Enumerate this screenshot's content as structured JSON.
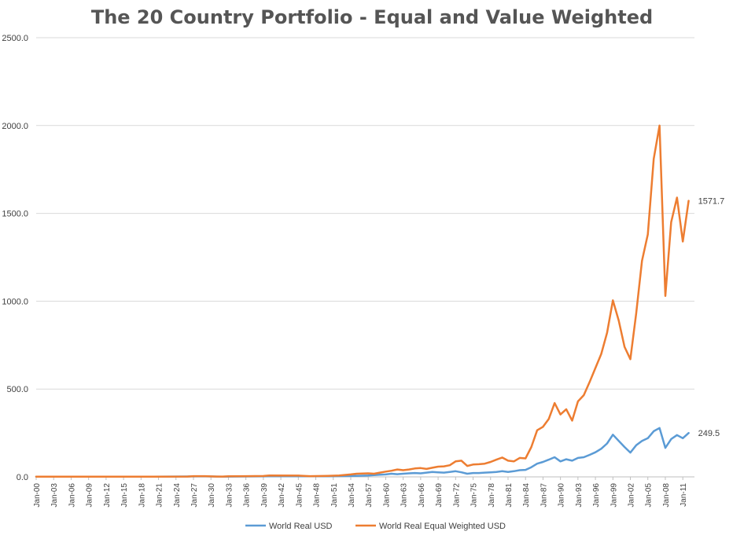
{
  "title": "The 20 Country Portfolio - Equal and Value Weighted",
  "chart_data": {
    "type": "line",
    "title": "The 20 Country Portfolio - Equal and Value Weighted",
    "xlabel": "",
    "ylabel": "",
    "ylim": [
      0,
      2500
    ],
    "y_ticks": [
      "0.0",
      "500.0",
      "1000.0",
      "1500.0",
      "2000.0",
      "2500.0"
    ],
    "x_start_year": 1900,
    "x_end_year": 2013,
    "x_ticks": [
      "Jan-00",
      "Jan-03",
      "Jan-06",
      "Jan-09",
      "Jan-12",
      "Jan-15",
      "Jan-18",
      "Jan-21",
      "Jan-24",
      "Jan-27",
      "Jan-30",
      "Jan-33",
      "Jan-36",
      "Jan-39",
      "Jan-42",
      "Jan-45",
      "Jan-48",
      "Jan-51",
      "Jan-54",
      "Jan-57",
      "Jan-60",
      "Jan-63",
      "Jan-66",
      "Jan-69",
      "Jan-72",
      "Jan-75",
      "Jan-78",
      "Jan-81",
      "Jan-84",
      "Jan-87",
      "Jan-90",
      "Jan-93",
      "Jan-96",
      "Jan-99",
      "Jan-02",
      "Jan-05",
      "Jan-08",
      "Jan-11"
    ],
    "grid": "horizontal",
    "legend_position": "bottom",
    "series": [
      {
        "name": "World Real USD",
        "color": "#5b9bd5",
        "end_label": "249.5",
        "points": [
          [
            1900,
            1
          ],
          [
            1910,
            1.5
          ],
          [
            1920,
            1.2
          ],
          [
            1929,
            2.5
          ],
          [
            1932,
            1.5
          ],
          [
            1940,
            3
          ],
          [
            1945,
            3.5
          ],
          [
            1949,
            3
          ],
          [
            1950,
            3
          ],
          [
            1955,
            6
          ],
          [
            1957,
            8
          ],
          [
            1959,
            12
          ],
          [
            1960,
            14
          ],
          [
            1961,
            18
          ],
          [
            1962,
            15
          ],
          [
            1963,
            18
          ],
          [
            1964,
            20
          ],
          [
            1965,
            22
          ],
          [
            1966,
            20
          ],
          [
            1967,
            24
          ],
          [
            1968,
            28
          ],
          [
            1969,
            26
          ],
          [
            1970,
            24
          ],
          [
            1971,
            28
          ],
          [
            1972,
            32
          ],
          [
            1973,
            26
          ],
          [
            1974,
            18
          ],
          [
            1975,
            22
          ],
          [
            1976,
            22
          ],
          [
            1977,
            24
          ],
          [
            1978,
            26
          ],
          [
            1979,
            28
          ],
          [
            1980,
            32
          ],
          [
            1981,
            28
          ],
          [
            1982,
            32
          ],
          [
            1983,
            38
          ],
          [
            1984,
            40
          ],
          [
            1985,
            55
          ],
          [
            1986,
            75
          ],
          [
            1987,
            85
          ],
          [
            1988,
            98
          ],
          [
            1989,
            112
          ],
          [
            1990,
            88
          ],
          [
            1991,
            100
          ],
          [
            1992,
            92
          ],
          [
            1993,
            108
          ],
          [
            1994,
            112
          ],
          [
            1995,
            125
          ],
          [
            1996,
            140
          ],
          [
            1997,
            160
          ],
          [
            1998,
            190
          ],
          [
            1999,
            240
          ],
          [
            2000,
            205
          ],
          [
            2001,
            170
          ],
          [
            2002,
            138
          ],
          [
            2003,
            180
          ],
          [
            2004,
            205
          ],
          [
            2005,
            220
          ],
          [
            2006,
            260
          ],
          [
            2007,
            278
          ],
          [
            2008,
            165
          ],
          [
            2009,
            215
          ],
          [
            2010,
            238
          ],
          [
            2011,
            220
          ],
          [
            2012,
            249.5
          ]
        ]
      },
      {
        "name": "World Real Equal Weighted USD",
        "color": "#ed7d31",
        "end_label": "1571.7",
        "points": [
          [
            1900,
            1
          ],
          [
            1910,
            1.5
          ],
          [
            1920,
            1.5
          ],
          [
            1926,
            2
          ],
          [
            1927,
            4
          ],
          [
            1929,
            4
          ],
          [
            1931,
            2
          ],
          [
            1932,
            2
          ],
          [
            1933,
            3
          ],
          [
            1936,
            4
          ],
          [
            1939,
            5
          ],
          [
            1940,
            8
          ],
          [
            1945,
            7
          ],
          [
            1947,
            4
          ],
          [
            1949,
            5
          ],
          [
            1950,
            6
          ],
          [
            1952,
            8
          ],
          [
            1954,
            14
          ],
          [
            1955,
            18
          ],
          [
            1957,
            20
          ],
          [
            1958,
            18
          ],
          [
            1959,
            24
          ],
          [
            1960,
            30
          ],
          [
            1961,
            35
          ],
          [
            1962,
            42
          ],
          [
            1963,
            38
          ],
          [
            1964,
            42
          ],
          [
            1965,
            48
          ],
          [
            1966,
            50
          ],
          [
            1967,
            45
          ],
          [
            1968,
            52
          ],
          [
            1969,
            58
          ],
          [
            1970,
            60
          ],
          [
            1971,
            66
          ],
          [
            1972,
            88
          ],
          [
            1973,
            92
          ],
          [
            1974,
            62
          ],
          [
            1975,
            70
          ],
          [
            1976,
            72
          ],
          [
            1977,
            75
          ],
          [
            1978,
            85
          ],
          [
            1979,
            98
          ],
          [
            1980,
            110
          ],
          [
            1981,
            92
          ],
          [
            1982,
            88
          ],
          [
            1983,
            108
          ],
          [
            1984,
            105
          ],
          [
            1985,
            170
          ],
          [
            1986,
            265
          ],
          [
            1987,
            285
          ],
          [
            1988,
            330
          ],
          [
            1989,
            420
          ],
          [
            1990,
            355
          ],
          [
            1991,
            385
          ],
          [
            1992,
            320
          ],
          [
            1993,
            430
          ],
          [
            1994,
            465
          ],
          [
            1995,
            540
          ],
          [
            1996,
            620
          ],
          [
            1997,
            700
          ],
          [
            1998,
            820
          ],
          [
            1999,
            1005
          ],
          [
            2000,
            890
          ],
          [
            2001,
            740
          ],
          [
            2002,
            670
          ],
          [
            2003,
            930
          ],
          [
            2004,
            1230
          ],
          [
            2005,
            1380
          ],
          [
            2006,
            1810
          ],
          [
            2007,
            2000
          ],
          [
            2008,
            1030
          ],
          [
            2009,
            1450
          ],
          [
            2010,
            1590
          ],
          [
            2011,
            1340
          ],
          [
            2012,
            1571.7
          ]
        ]
      }
    ]
  }
}
